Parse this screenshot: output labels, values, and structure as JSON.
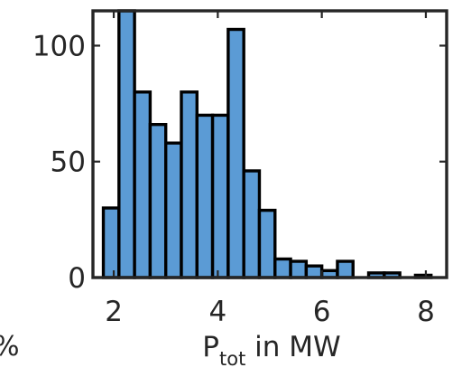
{
  "chart_data": {
    "type": "bar",
    "bin_edges": [
      1.8,
      2.1,
      2.4,
      2.7,
      3.0,
      3.3,
      3.6,
      3.9,
      4.2,
      4.5,
      4.8,
      5.1,
      5.4,
      5.7,
      6.0,
      6.3,
      6.6,
      6.9,
      7.2,
      7.5,
      7.8,
      8.1
    ],
    "values": [
      30,
      115,
      80,
      66,
      58,
      80,
      70,
      70,
      107,
      46,
      29,
      8,
      7,
      5,
      3,
      7,
      0,
      2,
      2,
      0,
      1
    ],
    "bar_color": "#5B9BD5",
    "edge_color": "#000000",
    "xlim": [
      1.6,
      8.4
    ],
    "ylim": [
      0,
      115
    ],
    "xticks": [
      2,
      4,
      6,
      8
    ],
    "yticks": [
      0,
      50,
      100
    ],
    "xtick_labels": [
      "2",
      "4",
      "6",
      "8"
    ],
    "ytick_labels": [
      "0",
      "50",
      "100"
    ],
    "xlabel": {
      "main": "P",
      "sub": "tot",
      "rest": " in MW"
    },
    "ylabel": "",
    "title": "",
    "grid": false
  },
  "left_fragment": "%"
}
